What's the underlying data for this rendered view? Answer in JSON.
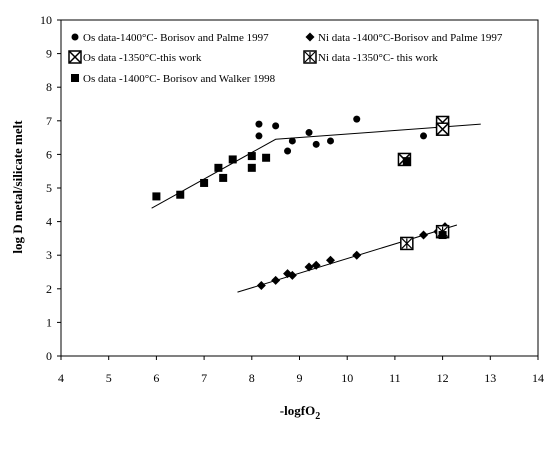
{
  "chart_data": {
    "type": "scatter",
    "xlabel": "-logfO",
    "xlabel_sub": "2",
    "ylabel": "log D metal/silicate melt",
    "xlim": [
      4,
      14
    ],
    "ylim": [
      0,
      10
    ],
    "x_ticks": [
      "4",
      "5",
      "6",
      "7",
      "8",
      "9",
      "10",
      "11",
      "12",
      "13",
      "14"
    ],
    "y_ticks": [
      "0",
      "1",
      "2",
      "3",
      "4",
      "5",
      "6",
      "7",
      "8",
      "9",
      "10"
    ],
    "grid": false,
    "series": [
      {
        "name": "Os data-1400°C- Borisov and Palme 1997",
        "marker": "circle",
        "points": [
          [
            8.15,
            6.9
          ],
          [
            8.15,
            6.55
          ],
          [
            8.5,
            6.85
          ],
          [
            8.75,
            6.1
          ],
          [
            8.85,
            6.4
          ],
          [
            9.2,
            6.65
          ],
          [
            9.35,
            6.3
          ],
          [
            9.65,
            6.4
          ],
          [
            10.2,
            7.05
          ],
          [
            11.6,
            6.55
          ],
          [
            12.0,
            6.9
          ]
        ]
      },
      {
        "name": "Ni data -1400°C-Borisov and Palme 1997",
        "marker": "diamond",
        "points": [
          [
            8.2,
            2.1
          ],
          [
            8.5,
            2.25
          ],
          [
            8.75,
            2.45
          ],
          [
            8.85,
            2.4
          ],
          [
            9.2,
            2.65
          ],
          [
            9.35,
            2.7
          ],
          [
            9.65,
            2.85
          ],
          [
            10.2,
            3.0
          ],
          [
            11.2,
            3.35
          ],
          [
            11.6,
            3.6
          ],
          [
            11.9,
            3.7
          ],
          [
            12.05,
            3.85
          ]
        ]
      },
      {
        "name": "Os data -1350°C-this work",
        "marker": "square-x",
        "points": [
          [
            11.2,
            5.85
          ],
          [
            12.0,
            6.95
          ],
          [
            12.0,
            6.75
          ]
        ]
      },
      {
        "name": "Ni data -1350°C- this work",
        "marker": "square-star",
        "points": [
          [
            11.25,
            3.35
          ],
          [
            12.0,
            3.7
          ]
        ]
      },
      {
        "name": "Os data -1400°C- Borisov and Walker 1998",
        "marker": "square",
        "points": [
          [
            6.0,
            4.75
          ],
          [
            6.5,
            4.8
          ],
          [
            7.0,
            5.15
          ],
          [
            7.3,
            5.6
          ],
          [
            7.4,
            5.3
          ],
          [
            7.6,
            5.85
          ],
          [
            8.0,
            5.6
          ],
          [
            8.0,
            5.95
          ],
          [
            8.3,
            5.9
          ],
          [
            11.25,
            5.8
          ],
          [
            12.0,
            3.6
          ]
        ]
      }
    ],
    "fit_lines": [
      {
        "points": [
          [
            5.9,
            4.4
          ],
          [
            8.5,
            6.45
          ],
          [
            12.8,
            6.9
          ]
        ]
      },
      {
        "points": [
          [
            7.7,
            1.9
          ],
          [
            12.3,
            3.9
          ]
        ]
      }
    ],
    "legend_position": "top"
  }
}
